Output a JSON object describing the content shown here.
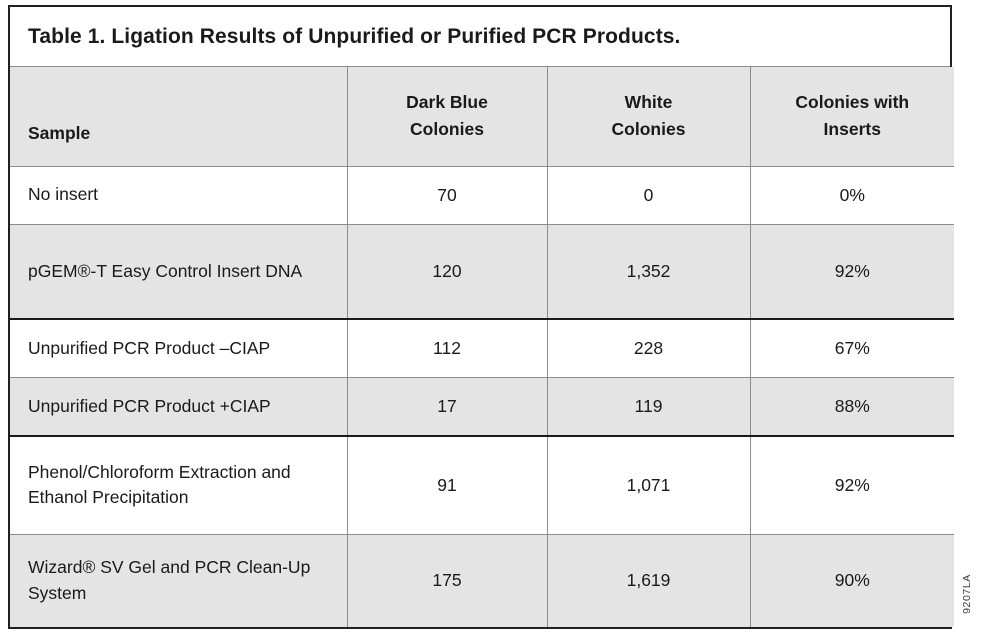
{
  "title": "Table 1. Ligation Results of Unpurified or Purified PCR Products.",
  "table": {
    "columns": {
      "sample": "Sample",
      "dark_blue": "Dark Blue\nColonies",
      "white": "White\nColonies",
      "inserts": "Colonies with\nInserts"
    },
    "rows": [
      {
        "sample": "No insert",
        "dark_blue": "70",
        "white": "0",
        "inserts": "0%"
      },
      {
        "sample": "pGEM®-T Easy Control Insert DNA",
        "dark_blue": "120",
        "white": "1,352",
        "inserts": "92%"
      },
      {
        "sample": "Unpurified PCR Product –CIAP",
        "dark_blue": "112",
        "white": "228",
        "inserts": "67%"
      },
      {
        "sample": "Unpurified PCR Product +CIAP",
        "dark_blue": "17",
        "white": "119",
        "inserts": "88%"
      },
      {
        "sample": "Phenol/Chloroform Extraction and Ethanol Precipitation",
        "dark_blue": "91",
        "white": "1,071",
        "inserts": "92%"
      },
      {
        "sample": "Wizard® SV Gel and PCR Clean-Up System",
        "dark_blue": "175",
        "white": "1,619",
        "inserts": "90%"
      }
    ]
  },
  "side_label": "9207LA",
  "colors": {
    "shaded_row_bg": "#e4e4e4",
    "outer_border": "#231f20",
    "grid_line": "#8c8c8c",
    "group_separator": "#1a1a1a"
  }
}
